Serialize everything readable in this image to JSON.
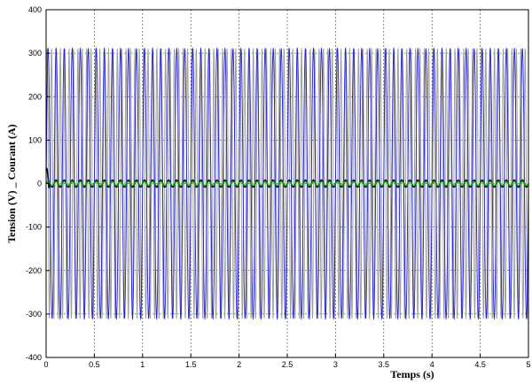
{
  "chart_data": {
    "type": "line",
    "xlabel": "Temps (s)",
    "ylabel": "Tension (V)  _  Courant (A)",
    "xlim": [
      0,
      5
    ],
    "ylim": [
      -400,
      400
    ],
    "x_ticks": [
      0,
      0.5,
      1,
      1.5,
      2,
      2.5,
      3,
      3.5,
      4,
      4.5,
      5
    ],
    "x_tick_labels": [
      "0",
      "0.5",
      "1",
      "1.5",
      "2",
      "2.5",
      "3",
      "3.5",
      "4",
      "4.5",
      "5"
    ],
    "y_ticks": [
      -400,
      -300,
      -200,
      -100,
      0,
      100,
      200,
      300,
      400
    ],
    "y_tick_labels": [
      "-400",
      "-300",
      "-200",
      "-100",
      "0",
      "100",
      "200",
      "300",
      "400"
    ],
    "grid": true,
    "series": [
      {
        "amplitude": 311,
        "cycles_over_span": 110,
        "style": "solid",
        "color": "#a0a0a0"
      },
      {
        "amplitude": 311,
        "cycles_over_span": 60,
        "style": "solid",
        "color": "#2222cc"
      },
      {
        "amplitude": 8,
        "cycles_over_span": 60,
        "style": "solid",
        "color": "#000000",
        "startup_peak": 35
      },
      {
        "amplitude": 5,
        "cycles_over_span": 60,
        "style": "solid",
        "color": "#16a016"
      }
    ]
  }
}
